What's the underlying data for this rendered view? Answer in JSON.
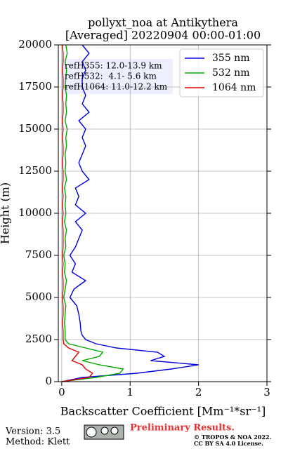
{
  "chart_data": {
    "type": "line",
    "title": "pollyxt_noa at Antikythera",
    "subtitle": "[Averaged] 20220904 00:00-01:00",
    "xlabel": "Backscatter Coefficient [Mm⁻¹*sr⁻¹]",
    "ylabel": "Height (m)",
    "x": [
      0,
      250,
      500,
      750,
      1000,
      1250,
      1500,
      1750,
      2000,
      2250,
      2500,
      2750,
      3000,
      3500,
      4000,
      4500,
      5000,
      5500,
      6000,
      6500,
      7000,
      7500,
      8000,
      8500,
      9000,
      9500,
      10000,
      10500,
      11000,
      11500,
      12000,
      12500,
      13000,
      13500,
      14000,
      14500,
      15000,
      15500,
      16000,
      16500,
      17000,
      17500,
      18000,
      18500,
      19000,
      19500,
      20000
    ],
    "series": [
      {
        "name": "355 nm",
        "color": "#0000dd",
        "values": [
          0.0,
          0.3,
          1.1,
          1.6,
          2.0,
          1.3,
          1.5,
          1.4,
          0.8,
          0.5,
          0.35,
          0.3,
          0.28,
          0.27,
          0.25,
          0.22,
          0.12,
          0.18,
          0.35,
          0.15,
          0.2,
          0.12,
          0.2,
          0.25,
          0.3,
          0.2,
          0.35,
          0.2,
          0.25,
          0.2,
          0.4,
          0.3,
          0.25,
          0.3,
          0.35,
          0.3,
          0.35,
          0.25,
          0.4,
          0.3,
          0.35,
          0.3,
          0.3,
          0.35,
          0.3,
          0.4,
          0.3
        ]
      },
      {
        "name": "532 nm",
        "color": "#00aa00",
        "values": [
          0.0,
          0.5,
          0.85,
          0.9,
          0.55,
          0.3,
          0.55,
          0.6,
          0.35,
          0.1,
          0.05,
          0.05,
          0.05,
          0.04,
          0.05,
          0.06,
          0.03,
          0.05,
          0.07,
          0.04,
          0.05,
          0.03,
          0.06,
          0.05,
          0.07,
          0.04,
          0.06,
          0.05,
          0.06,
          0.04,
          0.07,
          0.05,
          0.06,
          0.05,
          0.07,
          0.06,
          0.08,
          0.05,
          0.07,
          0.06,
          0.07,
          0.05,
          0.06,
          0.07,
          0.05,
          0.08,
          0.06
        ]
      },
      {
        "name": "1064 nm",
        "color": "#dd0000",
        "values": [
          0.0,
          0.4,
          0.45,
          0.35,
          0.3,
          0.15,
          0.2,
          0.25,
          0.1,
          0.03,
          0.02,
          0.02,
          0.02,
          0.01,
          0.02,
          0.02,
          0.01,
          0.02,
          0.02,
          0.01,
          0.02,
          0.01,
          0.02,
          0.02,
          0.02,
          0.01,
          0.02,
          0.01,
          0.02,
          0.01,
          0.02,
          0.02,
          0.01,
          0.02,
          0.02,
          0.01,
          0.02,
          0.01,
          0.02,
          0.02,
          0.01,
          0.02,
          0.02,
          0.01,
          0.02,
          0.02,
          0.01
        ]
      }
    ],
    "xlim": [
      -0.05,
      3
    ],
    "xticks": [
      0,
      1,
      2,
      3
    ],
    "ylim": [
      0,
      20000
    ],
    "yticks": [
      0,
      2500,
      5000,
      7500,
      10000,
      12500,
      15000,
      17500,
      20000
    ],
    "grid": true,
    "legend": "upper right",
    "annotations": [
      "refH355: 12.0-13.9 km",
      "refH532:  4.1- 5.6 km",
      "refH1064: 11.0-12.2 km"
    ]
  },
  "footer": {
    "version": "Version: 3.5",
    "method": "Method: Klett",
    "preliminary": "Preliminary Results.",
    "copyright": "© TROPOS & NOA 2022.",
    "license": "CC BY SA 4.0 License."
  }
}
